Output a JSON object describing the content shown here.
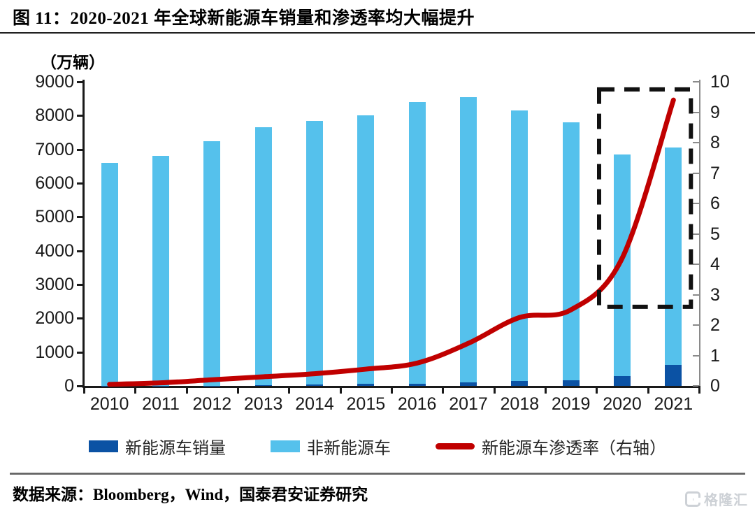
{
  "header": {
    "title": "图 11：2020-2021 年全球新能源车销量和渗透率均大幅提升"
  },
  "chart_data": {
    "type": "bar",
    "subtype": "stacked-bars-with-line",
    "title": "图 11：2020-2021 年全球新能源车销量和渗透率均大幅提升",
    "categories": [
      "2010",
      "2011",
      "2012",
      "2013",
      "2014",
      "2015",
      "2016",
      "2017",
      "2018",
      "2019",
      "2020",
      "2021"
    ],
    "series": [
      {
        "name": "新能源车销量",
        "type": "bar",
        "stacked": true,
        "axis": "left",
        "color": "#0B52A4",
        "values": [
          2,
          5,
          10,
          20,
          35,
          55,
          70,
          110,
          150,
          170,
          290,
          630
        ]
      },
      {
        "name": "非新能源车",
        "type": "bar",
        "stacked": true,
        "axis": "left",
        "color": "#55C1EC",
        "values": [
          6590,
          6795,
          7240,
          7630,
          7815,
          7945,
          8330,
          8440,
          8000,
          7630,
          6560,
          6420
        ]
      },
      {
        "name": "新能源车渗透率（右轴）",
        "type": "line",
        "axis": "right",
        "color": "#C00000",
        "values": [
          0.05,
          0.1,
          0.2,
          0.3,
          0.4,
          0.55,
          0.75,
          1.4,
          2.25,
          2.5,
          4.2,
          9.4
        ]
      }
    ],
    "left_axis": {
      "unit": "（万辆）",
      "min": 0,
      "max": 9000,
      "step": 1000,
      "tick_labels": [
        "0",
        "1000",
        "2000",
        "3000",
        "4000",
        "5000",
        "6000",
        "7000",
        "8000",
        "9000"
      ]
    },
    "right_axis": {
      "min": 0,
      "max": 10,
      "step": 1,
      "tick_labels": [
        "0",
        "1",
        "2",
        "3",
        "4",
        "5",
        "6",
        "7",
        "8",
        "9",
        "10"
      ]
    },
    "grid": false,
    "legend_position": "bottom",
    "annotation": {
      "type": "dashed-box",
      "color": "#111111",
      "years": [
        "2020",
        "2021"
      ],
      "right_axis_span": [
        2.6,
        9.75
      ]
    }
  },
  "legend": {
    "items": [
      {
        "label": "新能源车销量",
        "swatch": "bar",
        "color": "#0B52A4"
      },
      {
        "label": "非新能源车",
        "swatch": "bar",
        "color": "#55C1EC"
      },
      {
        "label": "新能源车渗透率（右轴）",
        "swatch": "line",
        "color": "#C00000"
      }
    ]
  },
  "footer": {
    "source": "数据来源：Bloomberg，Wind，国泰君安证券研究",
    "watermark": "格隆汇"
  }
}
